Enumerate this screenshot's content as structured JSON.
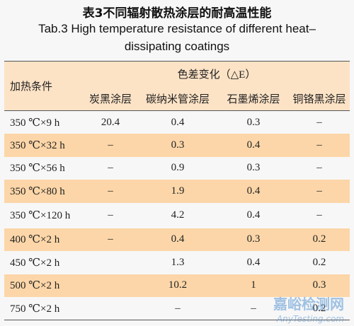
{
  "title": {
    "cn": "表3不同辐射散热涂层的耐高温性能",
    "en_lines": [
      "Tab.3 High temperature resistance of different heat–",
      "dissipating coatings"
    ]
  },
  "table": {
    "header": {
      "row_label": "加热条件",
      "group": "色差变化（△E）",
      "columns": [
        "炭黑涂层",
        "碳纳米管涂层",
        "石墨烯涂层",
        "铜铬黑涂层"
      ]
    },
    "rows": [
      [
        "350 ℃×9 h",
        "20.4",
        "0.4",
        "0.3",
        "–"
      ],
      [
        "350 ℃×32 h",
        "–",
        "0.3",
        "0.4",
        "–"
      ],
      [
        "350 ℃×56 h",
        "–",
        "0.9",
        "0.3",
        "–"
      ],
      [
        "350 ℃×80 h",
        "–",
        "1.9",
        "0.4",
        "–"
      ],
      [
        "350 ℃×120 h",
        "–",
        "4.2",
        "0.4",
        "–"
      ],
      [
        "400 ℃×2 h",
        "–",
        "0.4",
        "0.3",
        "0.2"
      ],
      [
        "450 ℃×2 h",
        "",
        "1.3",
        "0.4",
        "0.2"
      ],
      [
        "500 ℃×2 h",
        "",
        "10.2",
        "1",
        "0.3"
      ],
      [
        "750 ℃×2 h",
        "",
        "–",
        "–",
        "0.2"
      ]
    ]
  },
  "watermark": {
    "cn": "嘉峪检测网",
    "en": "AnyTesting.com"
  }
}
